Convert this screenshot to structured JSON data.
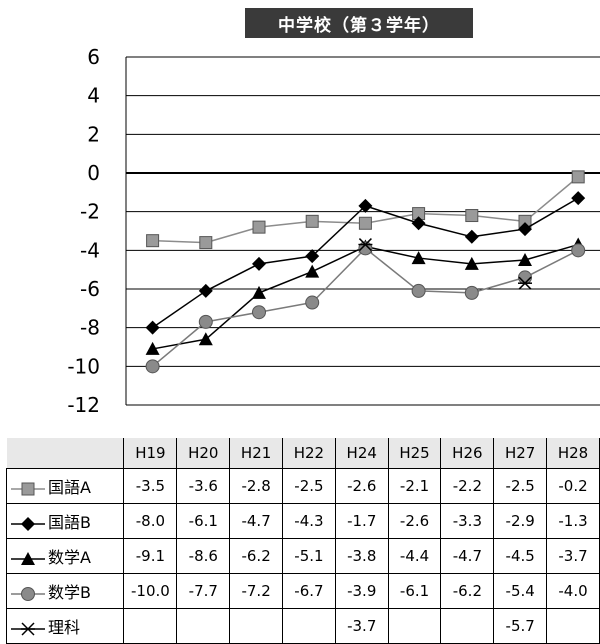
{
  "title": "中学校（第３学年）",
  "chart_data": {
    "type": "line",
    "title": "中学校（第３学年）",
    "categories": [
      "H19",
      "H20",
      "H21",
      "H22",
      "H24",
      "H25",
      "H26",
      "H27",
      "H28"
    ],
    "ylim": [
      -12,
      6
    ],
    "yticks": [
      6,
      4,
      2,
      0,
      -2,
      -4,
      -6,
      -8,
      -10,
      -12
    ],
    "ytick_labels": [
      "6",
      "4",
      "2",
      "0",
      "-2",
      "-4",
      "-6",
      "-8",
      "-10",
      "-12"
    ],
    "grid": true,
    "legend": "table-below",
    "series": [
      {
        "name": "国語A",
        "marker": "square",
        "color": "#8c8c8c",
        "values": [
          -3.5,
          -3.6,
          -2.8,
          -2.5,
          -2.6,
          -2.1,
          -2.2,
          -2.5,
          -0.2
        ],
        "labels": [
          "-3.5",
          "-3.6",
          "-2.8",
          "-2.5",
          "-2.6",
          "-2.1",
          "-2.2",
          "-2.5",
          "-0.2"
        ]
      },
      {
        "name": "国語B",
        "marker": "diamond",
        "color": "#000000",
        "values": [
          -8.0,
          -6.1,
          -4.7,
          -4.3,
          -1.7,
          -2.6,
          -3.3,
          -2.9,
          -1.3
        ],
        "labels": [
          "-8.0",
          "-6.1",
          "-4.7",
          "-4.3",
          "-1.7",
          "-2.6",
          "-3.3",
          "-2.9",
          "-1.3"
        ]
      },
      {
        "name": "数学A",
        "marker": "triangle",
        "color": "#000000",
        "values": [
          -9.1,
          -8.6,
          -6.2,
          -5.1,
          -3.8,
          -4.4,
          -4.7,
          -4.5,
          -3.7
        ],
        "labels": [
          "-9.1",
          "-8.6",
          "-6.2",
          "-5.1",
          "-3.8",
          "-4.4",
          "-4.7",
          "-4.5",
          "-3.7"
        ]
      },
      {
        "name": "数学B",
        "marker": "circle",
        "color": "#7a7a7a",
        "values": [
          -10.0,
          -7.7,
          -7.2,
          -6.7,
          -3.9,
          -6.1,
          -6.2,
          -5.4,
          -4.0
        ],
        "labels": [
          "-10.0",
          "-7.7",
          "-7.2",
          "-6.7",
          "-3.9",
          "-6.1",
          "-6.2",
          "-5.4",
          "-4.0"
        ]
      },
      {
        "name": "理科",
        "marker": "asterisk",
        "color": "#000000",
        "values": [
          null,
          null,
          null,
          null,
          -3.7,
          null,
          null,
          -5.7,
          null
        ],
        "labels": [
          "",
          "",
          "",
          "",
          "-3.7",
          "",
          "",
          "-5.7",
          ""
        ]
      }
    ]
  }
}
